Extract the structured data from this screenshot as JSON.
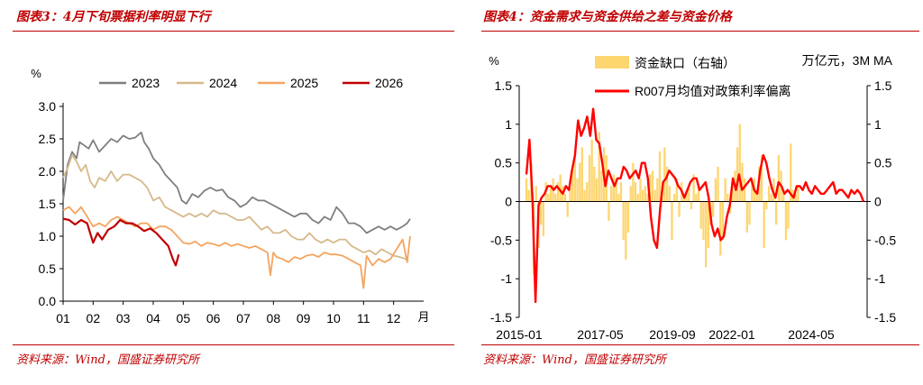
{
  "left": {
    "caption": "图表3：4月下旬票据利率明显下行",
    "source": "资料来源：Wind，国盛证券研究所",
    "chart_data": {
      "type": "line",
      "unit_label": "%",
      "x_label": "月",
      "x_ticks": [
        "01",
        "02",
        "03",
        "04",
        "05",
        "06",
        "07",
        "08",
        "09",
        "10",
        "11",
        "12"
      ],
      "y_ticks": [
        "0.0",
        "0.5",
        "1.0",
        "1.5",
        "2.0",
        "2.5",
        "3.0"
      ],
      "ylim": [
        0,
        3.0
      ],
      "legend_position": "top",
      "series": [
        {
          "name": "2023",
          "color": "#7f7f7f",
          "x": [
            1.0,
            1.15,
            1.3,
            1.45,
            1.55,
            1.7,
            1.85,
            2.0,
            2.2,
            2.4,
            2.6,
            2.8,
            3.0,
            3.2,
            3.4,
            3.6,
            3.7,
            3.85,
            4.0,
            4.2,
            4.4,
            4.6,
            4.8,
            4.95,
            5.1,
            5.3,
            5.5,
            5.7,
            5.9,
            6.1,
            6.3,
            6.5,
            6.7,
            6.9,
            7.1,
            7.3,
            7.5,
            7.7,
            7.9,
            8.1,
            8.3,
            8.5,
            8.7,
            8.9,
            9.1,
            9.3,
            9.5,
            9.7,
            9.9,
            10.1,
            10.3,
            10.5,
            10.7,
            10.9,
            11.1,
            11.3,
            11.5,
            11.7,
            11.9,
            12.1,
            12.3,
            12.45,
            12.55
          ],
          "y": [
            1.55,
            2.1,
            2.3,
            2.2,
            2.45,
            2.4,
            2.35,
            2.48,
            2.3,
            2.4,
            2.5,
            2.45,
            2.55,
            2.5,
            2.52,
            2.6,
            2.45,
            2.35,
            2.2,
            2.1,
            1.95,
            1.85,
            1.75,
            1.55,
            1.5,
            1.65,
            1.6,
            1.7,
            1.75,
            1.7,
            1.72,
            1.6,
            1.55,
            1.45,
            1.5,
            1.6,
            1.55,
            1.55,
            1.5,
            1.45,
            1.4,
            1.35,
            1.3,
            1.35,
            1.35,
            1.25,
            1.2,
            1.3,
            1.25,
            1.45,
            1.35,
            1.2,
            1.2,
            1.15,
            1.05,
            1.1,
            1.15,
            1.1,
            1.15,
            1.1,
            1.15,
            1.2,
            1.27
          ]
        },
        {
          "name": "2024",
          "color": "#d6b98c",
          "x": [
            1.0,
            1.15,
            1.3,
            1.45,
            1.6,
            1.75,
            1.9,
            2.05,
            2.2,
            2.4,
            2.6,
            2.8,
            3.0,
            3.2,
            3.4,
            3.6,
            3.8,
            4.0,
            4.2,
            4.4,
            4.6,
            4.8,
            5.0,
            5.2,
            5.4,
            5.6,
            5.8,
            6.0,
            6.2,
            6.4,
            6.6,
            6.8,
            7.0,
            7.2,
            7.4,
            7.6,
            7.8,
            8.0,
            8.2,
            8.4,
            8.6,
            8.8,
            9.0,
            9.2,
            9.4,
            9.6,
            9.8,
            10.0,
            10.2,
            10.4,
            10.6,
            10.8,
            11.0,
            11.2,
            11.4,
            11.6,
            11.8,
            12.0,
            12.2,
            12.4,
            12.5
          ],
          "y": [
            1.9,
            2.05,
            2.25,
            2.15,
            2.0,
            2.1,
            1.85,
            1.75,
            1.9,
            1.85,
            2.0,
            1.85,
            1.95,
            1.95,
            1.9,
            1.85,
            1.75,
            1.55,
            1.6,
            1.45,
            1.4,
            1.35,
            1.3,
            1.35,
            1.3,
            1.35,
            1.3,
            1.4,
            1.35,
            1.35,
            1.3,
            1.25,
            1.25,
            1.3,
            1.2,
            1.1,
            1.15,
            1.05,
            1.05,
            1.1,
            1.0,
            0.95,
            0.95,
            1.05,
            0.95,
            0.9,
            0.95,
            0.9,
            0.95,
            0.95,
            0.85,
            0.8,
            0.75,
            0.78,
            0.72,
            0.8,
            0.75,
            0.7,
            0.68,
            0.65,
            0.62
          ]
        },
        {
          "name": "2025",
          "color": "#f4a460",
          "x": [
            1.0,
            1.2,
            1.4,
            1.6,
            1.8,
            2.0,
            2.2,
            2.4,
            2.6,
            2.8,
            3.0,
            3.2,
            3.4,
            3.6,
            3.8,
            4.0,
            4.2,
            4.4,
            4.6,
            4.8,
            5.0,
            5.2,
            5.4,
            5.6,
            5.8,
            6.0,
            6.2,
            6.4,
            6.6,
            6.8,
            7.0,
            7.2,
            7.4,
            7.6,
            7.8,
            7.9,
            8.0,
            8.1,
            8.3,
            8.5,
            8.7,
            8.9,
            9.1,
            9.3,
            9.5,
            9.7,
            9.9,
            10.1,
            10.3,
            10.5,
            10.7,
            10.9,
            11.0,
            11.1,
            11.3,
            11.5,
            11.7,
            11.9,
            12.1,
            12.3,
            12.45,
            12.55
          ],
          "y": [
            1.4,
            1.45,
            1.35,
            1.45,
            1.3,
            1.15,
            1.2,
            1.15,
            1.25,
            1.3,
            1.25,
            1.2,
            1.15,
            1.2,
            1.2,
            1.1,
            1.15,
            1.15,
            1.1,
            1.0,
            0.9,
            0.88,
            0.92,
            0.85,
            0.9,
            0.88,
            0.85,
            0.9,
            0.85,
            0.88,
            0.85,
            0.82,
            0.85,
            0.8,
            0.75,
            0.4,
            0.75,
            0.68,
            0.65,
            0.6,
            0.68,
            0.65,
            0.7,
            0.72,
            0.68,
            0.75,
            0.72,
            0.72,
            0.7,
            0.65,
            0.6,
            0.55,
            0.2,
            0.7,
            0.55,
            0.65,
            0.6,
            0.65,
            0.8,
            0.95,
            0.6,
            1.0
          ]
        },
        {
          "name": "2026",
          "color": "#c00000",
          "x": [
            1.0,
            1.2,
            1.4,
            1.6,
            1.8,
            2.0,
            2.15,
            2.3,
            2.5,
            2.7,
            2.9,
            3.1,
            3.3,
            3.5,
            3.7,
            3.9,
            4.1,
            4.3,
            4.5,
            4.65,
            4.75,
            4.85
          ],
          "y": [
            1.27,
            1.25,
            1.18,
            1.25,
            1.2,
            0.9,
            1.05,
            0.95,
            1.1,
            1.15,
            1.25,
            1.2,
            1.2,
            1.15,
            1.08,
            1.12,
            1.05,
            0.95,
            0.85,
            0.65,
            0.55,
            0.72
          ]
        }
      ]
    }
  },
  "right": {
    "caption": "图表4：资金需求与资金供给之差与资金价格",
    "source": "资料来源：Wind，国盛证券研究所",
    "chart_data": {
      "type": "bar+line",
      "left_axis_unit": "%",
      "right_axis_unit": "万亿元，3M MA",
      "x_ticks": [
        "2015-01",
        "2017-05",
        "2019-09",
        "2022-01",
        "2024-05"
      ],
      "y_ticks": [
        "-1.5",
        "-1",
        "-0.5",
        "0",
        "0.5",
        "1",
        "1.5"
      ],
      "ylim": [
        -1.5,
        1.5
      ],
      "legend_position": "top",
      "series": [
        {
          "name": "资金缺口（右轴）",
          "kind": "bar",
          "color": "#fdd670",
          "axis": "right",
          "x": [
            0,
            1,
            2,
            3,
            4,
            5,
            6,
            7,
            8,
            9,
            10,
            11,
            12,
            13,
            14,
            15,
            16,
            17,
            18,
            19,
            20,
            21,
            22,
            23,
            24,
            25,
            26,
            27,
            28,
            29,
            30,
            31,
            32,
            33,
            34,
            35,
            36,
            37,
            38,
            39,
            40,
            41,
            42,
            43,
            44,
            45,
            46,
            47,
            48,
            49,
            50,
            51,
            52,
            53,
            54,
            55,
            56,
            57,
            58,
            59,
            60,
            61,
            62,
            63,
            64,
            65,
            66,
            67,
            68,
            69,
            70,
            71,
            72,
            73,
            74,
            75,
            76,
            77,
            78,
            79,
            80,
            81,
            82,
            83,
            84,
            85,
            86,
            87,
            88,
            89,
            90,
            91,
            92,
            93,
            94,
            95,
            96,
            97,
            98,
            99,
            100,
            101,
            102,
            103,
            104,
            105,
            106,
            107,
            108,
            109,
            110,
            111,
            112,
            113,
            114,
            115,
            116,
            117,
            118,
            119,
            120,
            121,
            122,
            123,
            124,
            125,
            126,
            127,
            128,
            129,
            130,
            131,
            132,
            133,
            134,
            135,
            136,
            137,
            138,
            139
          ],
          "values": [
            0.3,
            0.15,
            0.5,
            -0.95,
            0.2,
            -0.6,
            -0.3,
            -0.45,
            0.25,
            0.1,
            0.2,
            0.3,
            0.1,
            0.25,
            0.35,
            0.2,
            0.1,
            -0.2,
            0.2,
            0.4,
            0.6,
            0.3,
            0.5,
            0.7,
            0.15,
            0.25,
            0.6,
            0.8,
            0.45,
            0.3,
            0.9,
            0.4,
            0.7,
            0.6,
            -0.25,
            0.2,
            0.35,
            0.3,
            0.1,
            0.25,
            -0.5,
            -0.75,
            -0.4,
            0.2,
            0.5,
            0.25,
            0.1,
            0.3,
            0.15,
            0.2,
            0.1,
            0.35,
            0.4,
            0.15,
            0.3,
            0.65,
            0.2,
            0.7,
            0.45,
            0.2,
            -0.5,
            0.1,
            0.3,
            -0.2,
            0.25,
            0.1,
            0.15,
            0.2,
            -0.1,
            0.35,
            0.1,
            0.2,
            -0.35,
            -0.5,
            -0.85,
            -0.6,
            -0.3,
            -0.2,
            0.3,
            0.45,
            -0.7,
            -0.5,
            0.3,
            0.1,
            -0.15,
            0.2,
            0.4,
            0.7,
            1.0,
            0.5,
            0.3,
            -0.4,
            -0.3,
            0.25,
            0.3,
            0.15,
            0.45,
            0.6,
            -0.6,
            -0.1,
            0.2,
            0.1,
            0.3,
            -0.3,
            0.6,
            0.4,
            0.15,
            -0.5,
            -0.35,
            0.75,
            0.15,
            0.1,
            0.2,
            0.0,
            0.0,
            0.0,
            0.0,
            0.0,
            0.0,
            0.0,
            0.0,
            0.0,
            0.0,
            0.0,
            0.0,
            0.0,
            0.0,
            0.0,
            0.0,
            0.0,
            0.0,
            0.0,
            0.0,
            0.0,
            0.0,
            0.0,
            0.0,
            0.0,
            0.0,
            0.0
          ]
        },
        {
          "name": "R007月均值对政策利率偏离",
          "kind": "line",
          "color": "#ff0000",
          "axis": "left",
          "x": [
            0,
            1,
            2,
            3,
            4,
            5,
            6,
            7,
            8,
            9,
            10,
            11,
            12,
            13,
            14,
            15,
            16,
            17,
            18,
            19,
            20,
            21,
            22,
            23,
            24,
            25,
            26,
            27,
            28,
            29,
            30,
            31,
            32,
            33,
            34,
            35,
            36,
            37,
            38,
            39,
            40,
            41,
            42,
            43,
            44,
            45,
            46,
            47,
            48,
            49,
            50,
            51,
            52,
            53,
            54,
            55,
            56,
            57,
            58,
            59,
            60,
            61,
            62,
            63,
            64,
            65,
            66,
            67,
            68,
            69,
            70,
            71,
            72,
            73,
            74,
            75,
            76,
            77,
            78,
            79,
            80,
            81,
            82,
            83,
            84,
            85,
            86,
            87,
            88,
            89,
            90,
            91,
            92,
            93,
            94,
            95,
            96,
            97,
            98,
            99,
            100,
            101,
            102,
            103,
            104,
            105,
            106,
            107,
            108,
            109,
            110,
            111
          ],
          "y": [
            0.35,
            0.8,
            0.05,
            -1.3,
            -0.05,
            0.05,
            0.1,
            0.2,
            0.2,
            0.15,
            0.2,
            0.15,
            0.1,
            0.2,
            0.15,
            0.4,
            0.6,
            1.05,
            0.85,
            0.95,
            1.1,
            0.85,
            1.2,
            0.8,
            0.75,
            0.5,
            0.2,
            0.4,
            0.3,
            0.2,
            0.3,
            0.3,
            0.45,
            0.4,
            0.3,
            0.35,
            0.4,
            0.3,
            0.5,
            0.5,
            0.3,
            -0.2,
            -0.5,
            -0.6,
            -0.1,
            0.25,
            0.3,
            0.4,
            0.35,
            0.3,
            0.2,
            0.15,
            0.05,
            0.15,
            0.25,
            0.3,
            0.3,
            0.15,
            0.2,
            0.25,
            0.05,
            -0.3,
            -0.45,
            -0.35,
            -0.5,
            -0.45,
            -0.2,
            -0.05,
            0.3,
            0.15,
            0.35,
            0.15,
            0.2,
            0.25,
            0.3,
            0.15,
            0.1,
            0.4,
            0.6,
            0.5,
            0.3,
            0.15,
            0.05,
            0.25,
            0.2,
            0.1,
            0.15,
            0.1,
            0.05,
            0.2,
            0.2,
            0.15,
            0.25,
            0.15,
            0.1,
            0.2,
            0.15,
            0.1,
            0.1,
            0.15,
            0.2,
            0.25,
            0.1,
            0.15,
            0.15,
            0.1,
            0.05,
            0.15,
            0.1,
            0.15,
            0.1,
            0.0
          ]
        }
      ]
    }
  }
}
